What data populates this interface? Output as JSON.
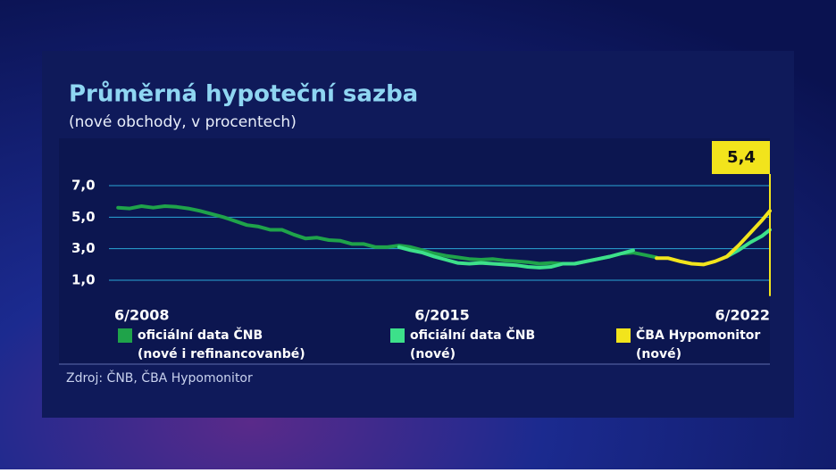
{
  "chart_data": {
    "type": "line",
    "title": "Průměrná hypoteční sazba",
    "subtitle": "(nové obchody, v procentech)",
    "source": "Zdroj: ČNB, ČBA Hypomonitor",
    "x": [
      2008.5,
      2008.75,
      2009,
      2009.25,
      2009.5,
      2009.75,
      2010,
      2010.25,
      2010.5,
      2010.75,
      2011,
      2011.25,
      2011.5,
      2011.75,
      2012,
      2012.25,
      2012.5,
      2012.75,
      2013,
      2013.25,
      2013.5,
      2013.75,
      2014,
      2014.25,
      2014.5,
      2014.75,
      2015,
      2015.25,
      2015.5,
      2015.75,
      2016,
      2016.25,
      2016.5,
      2016.75,
      2017,
      2017.25,
      2017.5,
      2017.75,
      2018,
      2018.25,
      2018.5,
      2018.75,
      2019,
      2019.25,
      2019.5,
      2019.75,
      2020,
      2020.25,
      2020.5,
      2020.75,
      2021,
      2021.25,
      2021.5,
      2021.75,
      2022,
      2022.25,
      2022.42
    ],
    "xlim": [
      2008.42,
      2022.42
    ],
    "xticks": [
      {
        "value": 2008.42,
        "label": "6/2008"
      },
      {
        "value": 2015.42,
        "label": "6/2015"
      },
      {
        "value": 2022.42,
        "label": "6/2022"
      }
    ],
    "ylim": [
      0,
      8
    ],
    "yticks": [
      {
        "value": 1,
        "label": "1,0"
      },
      {
        "value": 3,
        "label": "3,0"
      },
      {
        "value": 5,
        "label": "5,0"
      },
      {
        "value": 7,
        "label": "7,0"
      }
    ],
    "grid": true,
    "series": [
      {
        "name": "oficiální data ČNB",
        "name_detail": "(nové i refinancovanbé)",
        "color": "#1fa34a",
        "values": [
          5.6,
          5.55,
          5.7,
          5.6,
          5.7,
          5.65,
          5.55,
          5.4,
          5.2,
          5.0,
          4.75,
          4.5,
          4.4,
          4.2,
          4.2,
          3.9,
          3.65,
          3.7,
          3.55,
          3.5,
          3.3,
          3.3,
          3.1,
          3.1,
          3.2,
          3.1,
          2.9,
          2.7,
          2.55,
          2.45,
          2.35,
          2.3,
          2.35,
          2.25,
          2.2,
          2.15,
          2.05,
          2.1,
          2.05,
          2.05,
          2.2,
          2.35,
          2.5,
          2.7,
          2.75,
          2.6,
          2.45,
          null,
          null,
          null,
          null,
          null,
          null,
          null,
          null,
          null,
          null
        ]
      },
      {
        "name": "oficiální data ČNB",
        "name_detail": "(nové)",
        "color": "#3de08a",
        "values": [
          null,
          null,
          null,
          null,
          null,
          null,
          null,
          null,
          null,
          null,
          null,
          null,
          null,
          null,
          null,
          null,
          null,
          null,
          null,
          null,
          null,
          null,
          null,
          null,
          3.1,
          2.9,
          2.75,
          2.5,
          2.3,
          2.1,
          2.05,
          2.1,
          2.05,
          2.0,
          1.95,
          1.85,
          1.8,
          1.85,
          2.05,
          2.05,
          2.2,
          2.35,
          2.5,
          2.7,
          2.9,
          null,
          null,
          null,
          null,
          null,
          null,
          null,
          2.5,
          2.9,
          3.4,
          3.8,
          4.2
        ]
      },
      {
        "name": "ČBA Hypomonitor",
        "name_detail": "(nové)",
        "color": "#f2e41c",
        "values": [
          null,
          null,
          null,
          null,
          null,
          null,
          null,
          null,
          null,
          null,
          null,
          null,
          null,
          null,
          null,
          null,
          null,
          null,
          null,
          null,
          null,
          null,
          null,
          null,
          null,
          null,
          null,
          null,
          null,
          null,
          null,
          null,
          null,
          null,
          null,
          null,
          null,
          null,
          null,
          null,
          null,
          null,
          null,
          null,
          null,
          null,
          2.4,
          2.4,
          2.2,
          2.05,
          2.0,
          2.2,
          2.5,
          3.2,
          4.0,
          4.8,
          5.4
        ],
        "value_labels": [
          null,
          null,
          null,
          null,
          null,
          null,
          null,
          null,
          null,
          null,
          null,
          null,
          null,
          null,
          null,
          null,
          null,
          null,
          null,
          null,
          null,
          null,
          null,
          null,
          null,
          null,
          null,
          null,
          null,
          null,
          null,
          null,
          null,
          null,
          null,
          null,
          null,
          null,
          null,
          null,
          null,
          null,
          null,
          null,
          null,
          null,
          null,
          null,
          null,
          null,
          null,
          null,
          null,
          null,
          null,
          null,
          "5,4"
        ]
      }
    ]
  }
}
